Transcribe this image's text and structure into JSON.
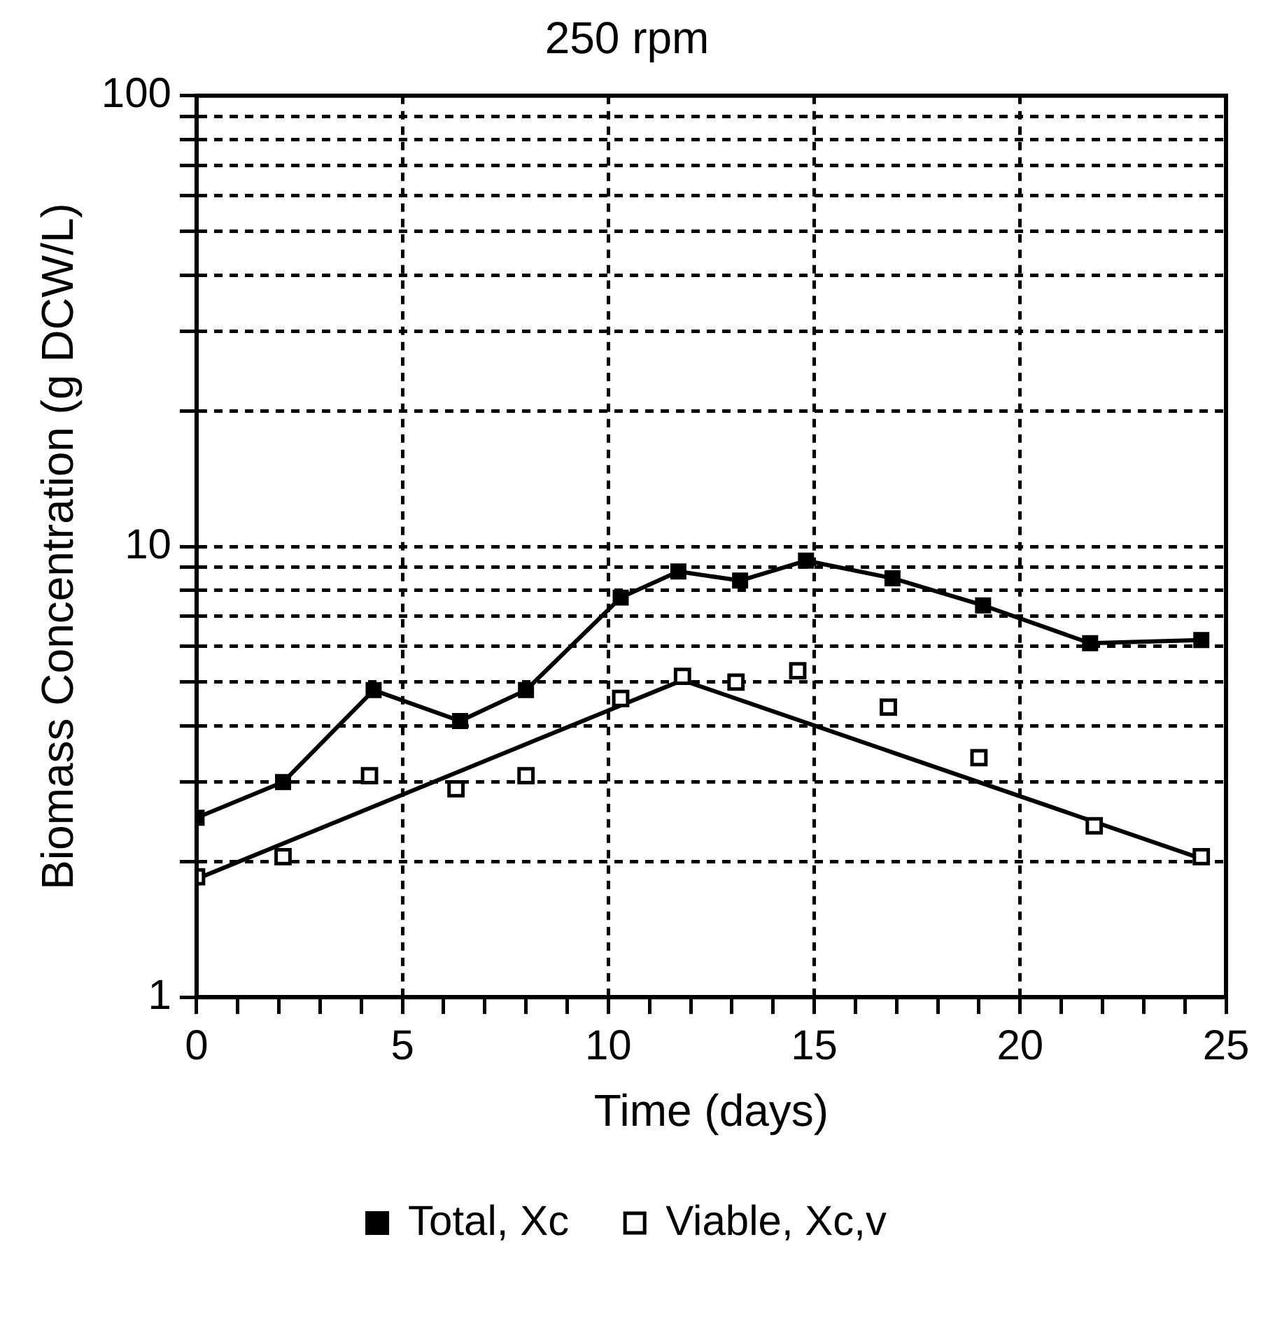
{
  "chart_data": {
    "type": "line",
    "title": "250 rpm",
    "xlabel": "Time (days)",
    "ylabel": "Biomass Concentration (g DCW/L)",
    "log": "y",
    "grid": true,
    "legend": "bottom",
    "xlim": [
      0,
      25
    ],
    "ylim": [
      1,
      100
    ],
    "xticks": [
      0,
      {
        "value": 1,
        "label": null
      },
      {
        "value": 2,
        "label": null
      },
      {
        "value": 3,
        "label": null
      },
      {
        "value": 4,
        "label": null
      },
      5,
      {
        "value": 6,
        "label": null
      },
      {
        "value": 7,
        "label": null
      },
      {
        "value": 8,
        "label": null
      },
      {
        "value": 9,
        "label": null
      },
      10,
      {
        "value": 11,
        "label": null
      },
      {
        "value": 12,
        "label": null
      },
      {
        "value": 13,
        "label": null
      },
      {
        "value": 14,
        "label": null
      },
      15,
      {
        "value": 16,
        "label": null
      },
      {
        "value": 17,
        "label": null
      },
      {
        "value": 18,
        "label": null
      },
      {
        "value": 19,
        "label": null
      },
      20,
      {
        "value": 21,
        "label": null
      },
      {
        "value": 22,
        "label": null
      },
      {
        "value": 23,
        "label": null
      },
      {
        "value": 24,
        "label": null
      },
      25
    ],
    "yticks": [
      1,
      {
        "value": 2,
        "label": null
      },
      {
        "value": 3,
        "label": null
      },
      {
        "value": 4,
        "label": null
      },
      {
        "value": 5,
        "label": null
      },
      {
        "value": 6,
        "label": null
      },
      {
        "value": 7,
        "label": null
      },
      {
        "value": 8,
        "label": null
      },
      {
        "value": 9,
        "label": null
      },
      10,
      {
        "value": 20,
        "label": null
      },
      {
        "value": 30,
        "label": null
      },
      {
        "value": 40,
        "label": null
      },
      {
        "value": 50,
        "label": null
      },
      {
        "value": 60,
        "label": null
      },
      {
        "value": 70,
        "label": null
      },
      {
        "value": 80,
        "label": null
      },
      {
        "value": 90,
        "label": null
      },
      100
    ],
    "series": [
      {
        "name": "Total, Xc",
        "type": "line",
        "marker": "square",
        "color": "#000000",
        "x": [
          0,
          2.1,
          4.3,
          6.4,
          8.0,
          10.3,
          11.7,
          13.2,
          14.8,
          16.9,
          19.1,
          21.7,
          24.4
        ],
        "values": [
          2.5,
          3.0,
          4.8,
          4.1,
          4.8,
          7.7,
          8.8,
          8.4,
          9.3,
          8.5,
          7.4,
          6.1,
          6.2
        ]
      },
      {
        "name": "Viable, Xc,v",
        "type": "scatter",
        "marker": "square",
        "color": "#000000",
        "x": [
          0,
          2.1,
          4.2,
          6.3,
          8.0,
          10.3,
          11.8,
          13.1,
          14.6,
          16.8,
          19.0,
          21.8,
          24.4
        ],
        "values": [
          1.85,
          2.05,
          3.1,
          2.9,
          3.1,
          4.6,
          5.15,
          5.0,
          5.3,
          4.4,
          3.4,
          2.4,
          2.05
        ]
      },
      {
        "type": "line",
        "marker": "none",
        "color": "#000000",
        "x": [
          0,
          11.8,
          24.4
        ],
        "values": [
          1.83,
          5.05,
          2.03
        ]
      }
    ]
  }
}
